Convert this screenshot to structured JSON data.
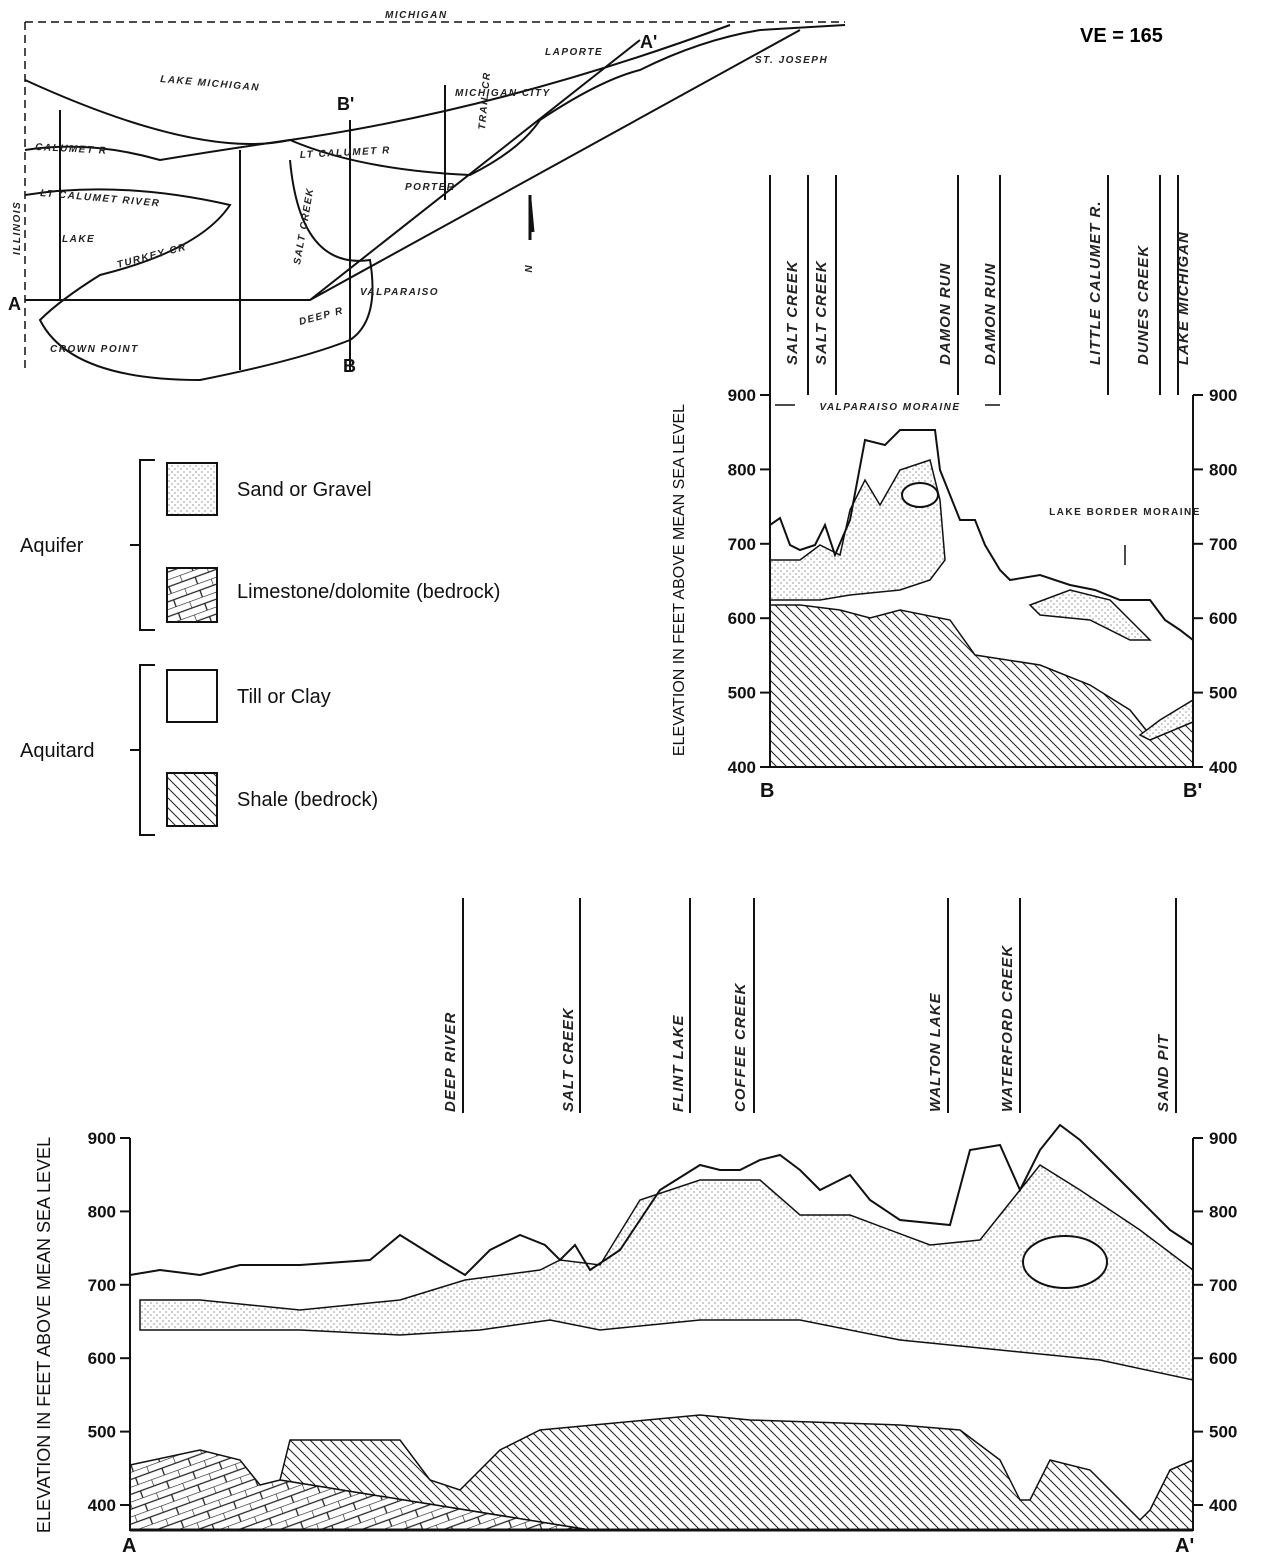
{
  "map": {
    "labels": [
      "MICHIGAN",
      "LAKE MICHIGAN",
      "LAPORTE",
      "ST. JOSEPH",
      "ILLINOIS",
      "LAKE",
      "PORTER",
      "CALUMET R",
      "LT CALUMET RIVER",
      "LT CALUMET R",
      "TURKEY CR",
      "DEEP R",
      "SALT CREEK",
      "TRAIL CR",
      "MICHIGAN CITY",
      "CROWN POINT",
      "VALPARAISO",
      "N"
    ],
    "section_ends": [
      "A",
      "A'",
      "B",
      "B'"
    ]
  },
  "ve": "VE = 165",
  "legend": {
    "groups": [
      {
        "label": "Aquifer",
        "items": [
          "Sand or Gravel",
          "Limestone/dolomite (bedrock)"
        ]
      },
      {
        "label": "Aquitard",
        "items": [
          "Till or Clay",
          "Shale (bedrock)"
        ]
      }
    ]
  },
  "section_b": {
    "y_label": "ELEVATION IN FEET ABOVE MEAN SEA LEVEL",
    "ticks": [
      900,
      800,
      700,
      600,
      500,
      400
    ],
    "features": [
      "SALT CREEK",
      "SALT CREEK",
      "DAMON RUN",
      "DAMON RUN",
      "LITTLE CALUMET R.",
      "DUNES CREEK",
      "LAKE MICHIGAN"
    ],
    "annotations": [
      "VALPARAISO MORAINE",
      "LAKE BORDER MORAINE"
    ],
    "ends": [
      "B",
      "B'"
    ]
  },
  "section_a": {
    "y_label": "ELEVATION IN FEET ABOVE MEAN SEA LEVEL",
    "ticks": [
      900,
      800,
      700,
      600,
      500,
      400
    ],
    "features": [
      "DEEP RIVER",
      "SALT CREEK",
      "FLINT LAKE",
      "COFFEE CREEK",
      "WALTON LAKE",
      "WATERFORD CREEK",
      "SAND PIT"
    ],
    "ends": [
      "A",
      "A'"
    ]
  }
}
